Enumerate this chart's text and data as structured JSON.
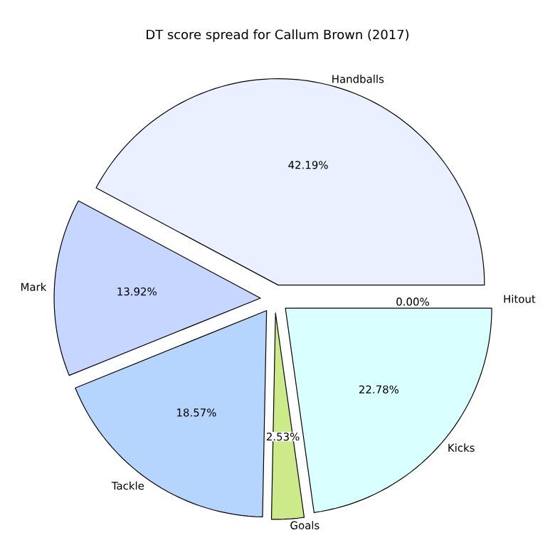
{
  "chart_data": {
    "type": "pie",
    "title": "DT score spread for Callum Brown (2017)",
    "categories": [
      "Handballs",
      "Mark",
      "Tackle",
      "Goals",
      "Kicks",
      "Hitout"
    ],
    "values": [
      42.19,
      13.92,
      18.57,
      2.53,
      22.78,
      0.0
    ],
    "value_labels": [
      "42.19%",
      "13.92%",
      "18.57%",
      "2.53%",
      "22.78%",
      "0.00%"
    ],
    "colors": [
      "#eaf0ff",
      "#c6d6ff",
      "#b5d5ff",
      "#cdea8a",
      "#daffff",
      "#ffffff"
    ]
  }
}
